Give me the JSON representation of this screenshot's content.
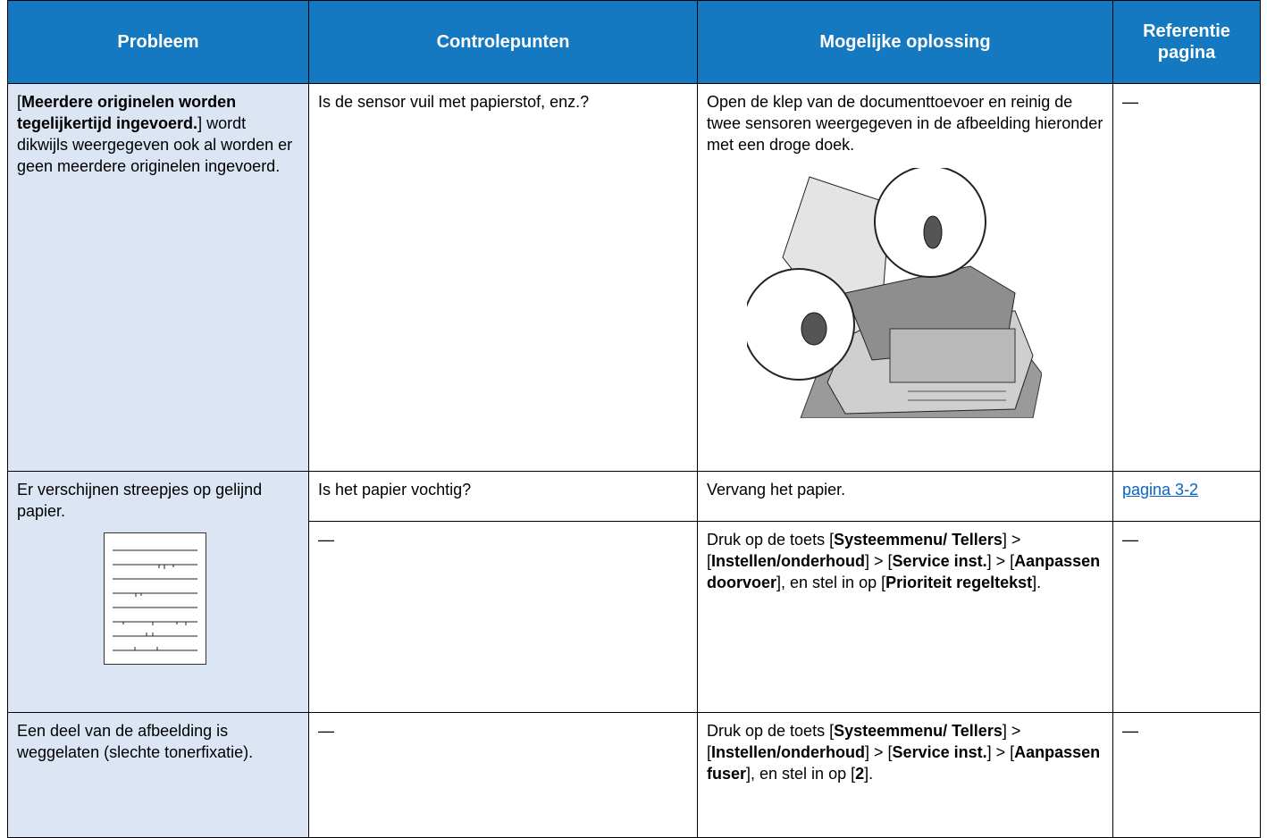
{
  "table": {
    "header": [
      "Probleem",
      "Controlepunten",
      "Mogelijke oplossing",
      "Referentie pagina"
    ],
    "rows": [
      {
        "problem": [
          "[",
          "Meerdere originelen worden tegelijkertijd ingevoerd.",
          "] wordt dikwijls weergegeven ook al worden er geen meerdere originelen ingevoerd."
        ],
        "check": "Is de sensor vuil met papierstof, enz.?",
        "solution": "Open de klep van de documenttoevoer en reinig de twee sensoren weergegeven in de afbeelding hieronder met een droge doek.",
        "reference": "—"
      },
      {
        "problem": "Er verschijnen streepjes op gelijnd papier.",
        "items": [
          {
            "check": "Is het papier vochtig?",
            "solution": "Vervang het papier.",
            "reference": "pagina 3-2"
          },
          {
            "check": "—",
            "solution": [
              "Druk op de toets [",
              "Systeemmenu/ Tellers",
              "] > [",
              "Instellen/onderhoud",
              "] > [",
              "Service inst.",
              "] > [",
              "Aanpassen doorvoer",
              "], en stel in op [",
              "Prioriteit regeltekst",
              "]."
            ],
            "reference": "—"
          }
        ]
      },
      {
        "problem": "Een deel van de afbeelding is weggelaten (slechte tonerfixatie).",
        "check": "—",
        "solution": [
          "Druk op de toets [",
          "Systeemmenu/ Tellers",
          "] > [",
          "Instellen/onderhoud",
          "] > [",
          "Service inst.",
          "] > [",
          "Aanpassen fuser",
          "], en stel in op [",
          "2",
          "]."
        ],
        "reference": "—"
      }
    ]
  }
}
